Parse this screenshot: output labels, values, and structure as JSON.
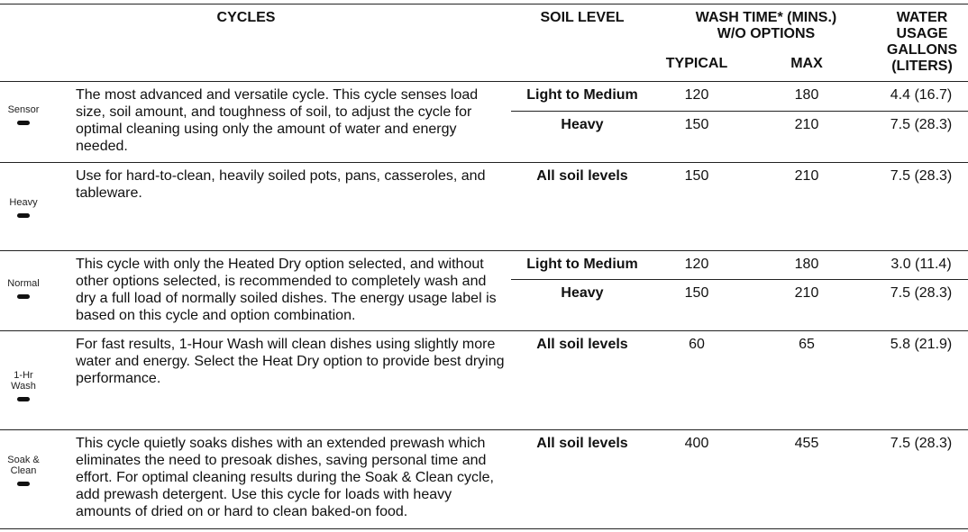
{
  "header": {
    "cycles": "CYCLES",
    "soil_level": "SOIL LEVEL",
    "wash_time": "WASH TIME* (MINS.)",
    "wash_time_sub": "W/O OPTIONS",
    "typical": "TYPICAL",
    "max": "MAX",
    "water_1": "WATER",
    "water_2": "USAGE",
    "water_3": "GALLONS",
    "water_4": "(LITERS)"
  },
  "rows": [
    {
      "cycle": [
        "Sensor"
      ],
      "description": "The most advanced and versatile cycle. This cycle senses load size, soil amount, and toughness of soil, to adjust the cycle for optimal cleaning using only the amount of water and energy needed.",
      "sub": [
        {
          "soil": "Light to Medium",
          "typical": "120",
          "max": "180",
          "water": "4.4 (16.7)"
        },
        {
          "soil": "Heavy",
          "typical": "150",
          "max": "210",
          "water": "7.5 (28.3)"
        }
      ]
    },
    {
      "cycle": [
        "Heavy"
      ],
      "description": "Use for hard-to-clean, heavily soiled pots, pans, casseroles, and tableware.",
      "sub": [
        {
          "soil": "All soil levels",
          "typical": "150",
          "max": "210",
          "water": "7.5 (28.3)"
        }
      ]
    },
    {
      "cycle": [
        "Normal"
      ],
      "description": "This cycle with only the Heated Dry option selected, and without other options selected, is recommended to completely wash and dry a full load of normally soiled dishes. The energy usage label is based on this cycle and option combination.",
      "sub": [
        {
          "soil": "Light to Medium",
          "typical": "120",
          "max": "180",
          "water": "3.0 (11.4)"
        },
        {
          "soil": "Heavy",
          "typical": "150",
          "max": "210",
          "water": "7.5 (28.3)"
        }
      ]
    },
    {
      "cycle": [
        "1-Hr",
        "Wash"
      ],
      "description": "For fast results, 1-Hour Wash will clean dishes using slightly more water and energy. Select the Heat Dry option to provide best drying performance.",
      "sub": [
        {
          "soil": "All soil levels",
          "typical": "60",
          "max": "65",
          "water": "5.8 (21.9)"
        }
      ]
    },
    {
      "cycle": [
        "Soak &",
        "Clean"
      ],
      "description": "This cycle quietly soaks dishes with an extended prewash which eliminates the need to presoak dishes, saving personal time and effort. For optimal cleaning results during the Soak & Clean cycle, add prewash detergent. Use this cycle for loads with heavy amounts of dried on or hard to clean baked-on food.",
      "sub": [
        {
          "soil": "All soil levels",
          "typical": "400",
          "max": "455",
          "water": "7.5 (28.3)"
        }
      ]
    }
  ]
}
